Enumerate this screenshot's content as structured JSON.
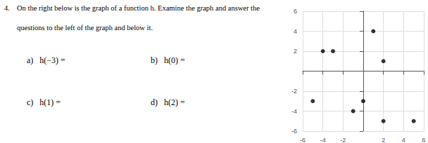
{
  "chart_data": {
    "type": "scatter",
    "annotations": [
      "4.",
      "On the right below is the graph of a function h. Examine the graph and answer the",
      "questions to the left of the graph and below it.",
      "a)   h(−3) =",
      "b)   h(0) =",
      "c)   h(1) =",
      "d)   h(2) ="
    ],
    "x": [
      -4,
      -3,
      1,
      2,
      -5,
      0,
      -1,
      2,
      5
    ],
    "values": [
      2,
      2,
      4,
      1,
      -3,
      -3,
      -4,
      -5,
      -5
    ],
    "color": "#000000",
    "xlim": [
      -6,
      6
    ],
    "ylim": [
      -6,
      6
    ],
    "xticks": [
      -6,
      -4,
      -2,
      2,
      4,
      6
    ],
    "yticks": [
      -6,
      -4,
      -2,
      2,
      4,
      6
    ],
    "grid": true
  }
}
